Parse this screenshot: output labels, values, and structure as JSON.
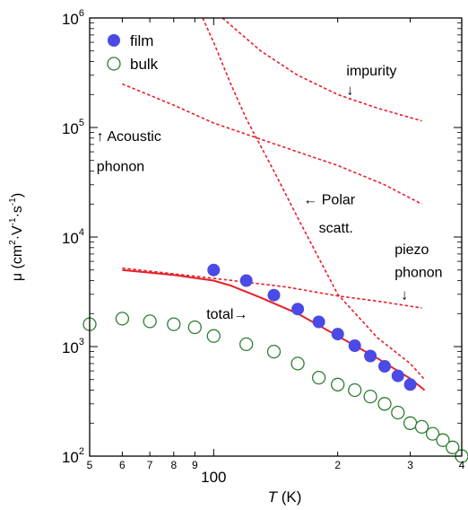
{
  "chart_data": {
    "type": "scatter",
    "x_scale": "log",
    "y_scale": "log",
    "xlim": [
      50,
      400
    ],
    "ylim": [
      100,
      1000000
    ],
    "xlabel": {
      "italic": "T",
      "rest": " (K)"
    },
    "ylabel": {
      "base": "μ (cm",
      "sup1": "2",
      "mid1": "·V",
      "sup2": "-1",
      "mid2": "·s",
      "sup3": "-1",
      "end": ")"
    },
    "x_ticks": [
      {
        "value": 50,
        "label": "5",
        "size": "small"
      },
      {
        "value": 60,
        "label": "6",
        "size": "small"
      },
      {
        "value": 70,
        "label": "7",
        "size": "small"
      },
      {
        "value": 80,
        "label": "8",
        "size": "small"
      },
      {
        "value": 90,
        "label": "9",
        "size": "small"
      },
      {
        "value": 100,
        "label": "100",
        "size": "large"
      },
      {
        "value": 200,
        "label": "2",
        "size": "small"
      },
      {
        "value": 300,
        "label": "3",
        "size": "small"
      },
      {
        "value": 400,
        "label": "4",
        "size": "small"
      }
    ],
    "y_ticks": [
      {
        "value": 100,
        "base": "10",
        "exp": "2"
      },
      {
        "value": 1000,
        "base": "10",
        "exp": "3"
      },
      {
        "value": 10000,
        "base": "10",
        "exp": "4"
      },
      {
        "value": 100000,
        "base": "10",
        "exp": "5"
      },
      {
        "value": 1000000,
        "base": "10",
        "exp": "6"
      }
    ],
    "legend": {
      "placement": "top-left",
      "entries": [
        {
          "name": "film",
          "marker": "filled-circle",
          "color": "#4a4ae6"
        },
        {
          "name": "bulk",
          "marker": "open-circle",
          "color": "#2e7d32"
        }
      ]
    },
    "series": [
      {
        "name": "film",
        "marker": "filled-circle",
        "color": "#4a4ae6",
        "points": [
          [
            100,
            5000
          ],
          [
            120,
            4000
          ],
          [
            140,
            2950
          ],
          [
            160,
            2200
          ],
          [
            180,
            1680
          ],
          [
            200,
            1300
          ],
          [
            220,
            1020
          ],
          [
            240,
            820
          ],
          [
            260,
            660
          ],
          [
            280,
            540
          ],
          [
            300,
            450
          ]
        ]
      },
      {
        "name": "bulk",
        "marker": "open-circle",
        "color": "#2e7d32",
        "points": [
          [
            50,
            1600
          ],
          [
            60,
            1800
          ],
          [
            70,
            1700
          ],
          [
            80,
            1600
          ],
          [
            90,
            1500
          ],
          [
            100,
            1250
          ],
          [
            120,
            1050
          ],
          [
            140,
            900
          ],
          [
            160,
            700
          ],
          [
            180,
            520
          ],
          [
            200,
            450
          ],
          [
            220,
            400
          ],
          [
            240,
            350
          ],
          [
            260,
            300
          ],
          [
            280,
            250
          ],
          [
            300,
            200
          ],
          [
            320,
            185
          ],
          [
            340,
            160
          ],
          [
            360,
            140
          ],
          [
            380,
            120
          ],
          [
            400,
            100
          ]
        ]
      }
    ],
    "curves": [
      {
        "kind": "impurity",
        "style": "dashed",
        "color": "#e8202a",
        "points": [
          [
            105,
            1000000
          ],
          [
            130,
            500000
          ],
          [
            160,
            300000
          ],
          [
            200,
            200000
          ],
          [
            250,
            150000
          ],
          [
            320,
            115000
          ]
        ]
      },
      {
        "kind": "acoustic phonon",
        "style": "dashed",
        "color": "#e8202a",
        "points": [
          [
            60,
            250000
          ],
          [
            80,
            160000
          ],
          [
            100,
            110000
          ],
          [
            150,
            65000
          ],
          [
            200,
            45000
          ],
          [
            260,
            30000
          ],
          [
            320,
            20000
          ]
        ]
      },
      {
        "kind": "polar scattering",
        "style": "dashed",
        "color": "#e8202a",
        "points": [
          [
            94,
            1000000
          ],
          [
            100,
            600000
          ],
          [
            110,
            250000
          ],
          [
            120,
            120000
          ],
          [
            140,
            40000
          ],
          [
            160,
            15000
          ],
          [
            200,
            3000
          ],
          [
            250,
            1200
          ],
          [
            300,
            700
          ],
          [
            325,
            500
          ]
        ]
      },
      {
        "kind": "piezo phonon",
        "style": "dashed",
        "color": "#e8202a",
        "points": [
          [
            60,
            5200
          ],
          [
            100,
            4200
          ],
          [
            150,
            3500
          ],
          [
            200,
            2900
          ],
          [
            250,
            2600
          ],
          [
            320,
            2250
          ]
        ]
      },
      {
        "kind": "total",
        "style": "solid",
        "color": "#e8202a",
        "points": [
          [
            60,
            5000
          ],
          [
            80,
            4500
          ],
          [
            100,
            4000
          ],
          [
            110,
            3600
          ],
          [
            130,
            2800
          ],
          [
            160,
            2000
          ],
          [
            200,
            1250
          ],
          [
            250,
            780
          ],
          [
            300,
            510
          ],
          [
            325,
            400
          ]
        ]
      }
    ],
    "annotations": [
      {
        "id": "impurity-label",
        "text": "impurity",
        "x": 210,
        "y": 300000
      },
      {
        "id": "impurity-arrow",
        "text": "↓",
        "x": 210,
        "y": 200000
      },
      {
        "id": "acoustic-label-1",
        "text": "↑ Acoustic",
        "x": 52,
        "y": 75000
      },
      {
        "id": "acoustic-label-2",
        "text": "phonon",
        "x": 52,
        "y": 40000
      },
      {
        "id": "polar-label-1",
        "text": "← Polar",
        "x": 165,
        "y": 20000
      },
      {
        "id": "polar-label-2",
        "text": "scatt.",
        "x": 180,
        "y": 11000
      },
      {
        "id": "piezo-label-1",
        "text": "piezo",
        "x": 275,
        "y": 7000
      },
      {
        "id": "piezo-label-2",
        "text": "phonon",
        "x": 275,
        "y": 4300
      },
      {
        "id": "piezo-arrow",
        "text": "↓",
        "x": 285,
        "y": 2700
      },
      {
        "id": "total-label",
        "text": "total→",
        "x": 96,
        "y": 1800
      }
    ]
  }
}
